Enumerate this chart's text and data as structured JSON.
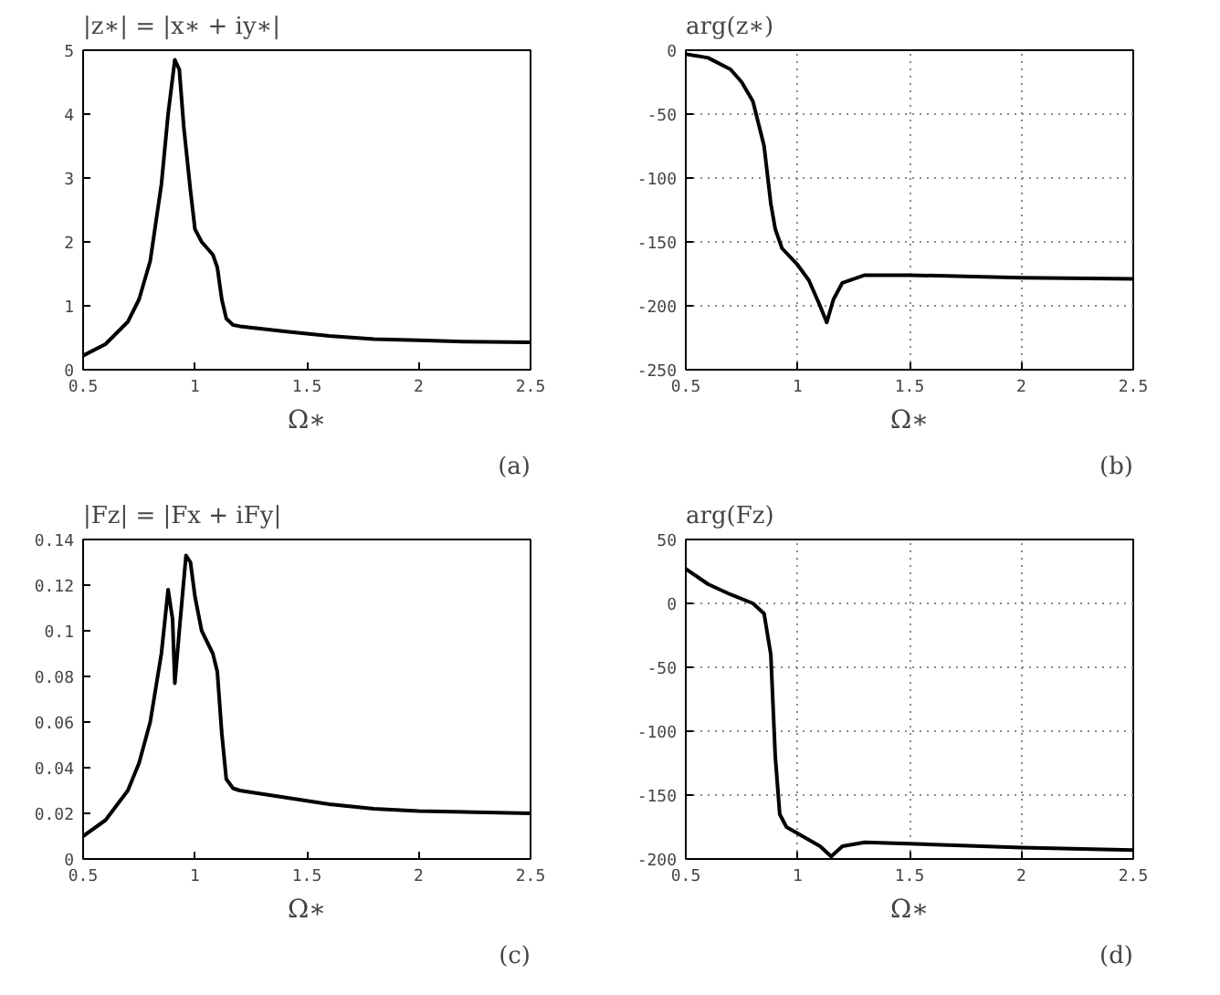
{
  "chart_data": [
    {
      "type": "line",
      "title": "|z∗| = |x∗ + iy∗|",
      "xlabel": "Ω∗",
      "annotations": [
        "(a)"
      ],
      "grid": false,
      "xlim": [
        0.5,
        2.5
      ],
      "xticks": [
        0.5,
        1,
        1.5,
        2,
        2.5
      ],
      "ylim": [
        0,
        5
      ],
      "yticks": [
        0,
        1,
        2,
        3,
        4,
        5
      ],
      "series": [
        {
          "color": "#000000",
          "x": [
            0.5,
            0.6,
            0.7,
            0.75,
            0.8,
            0.85,
            0.88,
            0.91,
            0.93,
            0.95,
            0.98,
            1.0,
            1.03,
            1.08,
            1.1,
            1.12,
            1.14,
            1.17,
            1.2,
            1.4,
            1.6,
            1.8,
            2.0,
            2.2,
            2.5
          ],
          "values": [
            0.22,
            0.4,
            0.75,
            1.1,
            1.7,
            2.9,
            4.0,
            4.85,
            4.7,
            3.8,
            2.8,
            2.2,
            2.0,
            1.8,
            1.6,
            1.1,
            0.8,
            0.7,
            0.68,
            0.6,
            0.53,
            0.48,
            0.46,
            0.44,
            0.43
          ]
        }
      ]
    },
    {
      "type": "line",
      "title": "arg(z∗)",
      "xlabel": "Ω∗",
      "annotations": [
        "(b)"
      ],
      "grid": true,
      "xlim": [
        0.5,
        2.5
      ],
      "xticks": [
        0.5,
        1,
        1.5,
        2,
        2.5
      ],
      "ylim": [
        -250,
        0
      ],
      "yticks": [
        -250,
        -200,
        -150,
        -100,
        -50,
        0
      ],
      "series": [
        {
          "color": "#000000",
          "x": [
            0.5,
            0.6,
            0.7,
            0.75,
            0.8,
            0.85,
            0.88,
            0.9,
            0.93,
            1.0,
            1.05,
            1.1,
            1.13,
            1.16,
            1.2,
            1.3,
            1.5,
            2.0,
            2.5
          ],
          "values": [
            -3,
            -6,
            -15,
            -25,
            -40,
            -75,
            -120,
            -140,
            -155,
            -168,
            -180,
            -200,
            -213,
            -195,
            -182,
            -176,
            -176,
            -178,
            -179
          ]
        }
      ]
    },
    {
      "type": "line",
      "title": "|Fz| = |Fx + iFy|",
      "xlabel": "Ω∗",
      "annotations": [
        "(c)"
      ],
      "grid": false,
      "xlim": [
        0.5,
        2.5
      ],
      "xticks": [
        0.5,
        1,
        1.5,
        2,
        2.5
      ],
      "ylim": [
        0,
        0.14
      ],
      "yticks": [
        0,
        0.02,
        0.04,
        0.06,
        0.08,
        0.1,
        0.12,
        0.14
      ],
      "series": [
        {
          "color": "#000000",
          "x": [
            0.5,
            0.6,
            0.7,
            0.75,
            0.8,
            0.85,
            0.88,
            0.9,
            0.91,
            0.93,
            0.96,
            0.98,
            1.0,
            1.03,
            1.08,
            1.1,
            1.12,
            1.14,
            1.17,
            1.2,
            1.4,
            1.6,
            1.8,
            2.0,
            2.5
          ],
          "values": [
            0.01,
            0.017,
            0.03,
            0.042,
            0.06,
            0.09,
            0.118,
            0.105,
            0.077,
            0.1,
            0.133,
            0.13,
            0.115,
            0.1,
            0.09,
            0.082,
            0.055,
            0.035,
            0.031,
            0.03,
            0.027,
            0.024,
            0.022,
            0.021,
            0.02
          ]
        }
      ]
    },
    {
      "type": "line",
      "title": "arg(Fz)",
      "xlabel": "Ω∗",
      "annotations": [
        "(d)"
      ],
      "grid": true,
      "xlim": [
        0.5,
        2.5
      ],
      "xticks": [
        0.5,
        1,
        1.5,
        2,
        2.5
      ],
      "ylim": [
        -200,
        50
      ],
      "yticks": [
        -200,
        -150,
        -100,
        -50,
        0,
        50
      ],
      "series": [
        {
          "color": "#000000",
          "x": [
            0.5,
            0.6,
            0.7,
            0.8,
            0.85,
            0.88,
            0.9,
            0.92,
            0.95,
            1.0,
            1.1,
            1.15,
            1.2,
            1.3,
            1.5,
            2.0,
            2.5
          ],
          "values": [
            27,
            15,
            7,
            0,
            -8,
            -40,
            -120,
            -165,
            -175,
            -180,
            -190,
            -198,
            -190,
            -187,
            -188,
            -191,
            -193
          ]
        }
      ]
    }
  ]
}
